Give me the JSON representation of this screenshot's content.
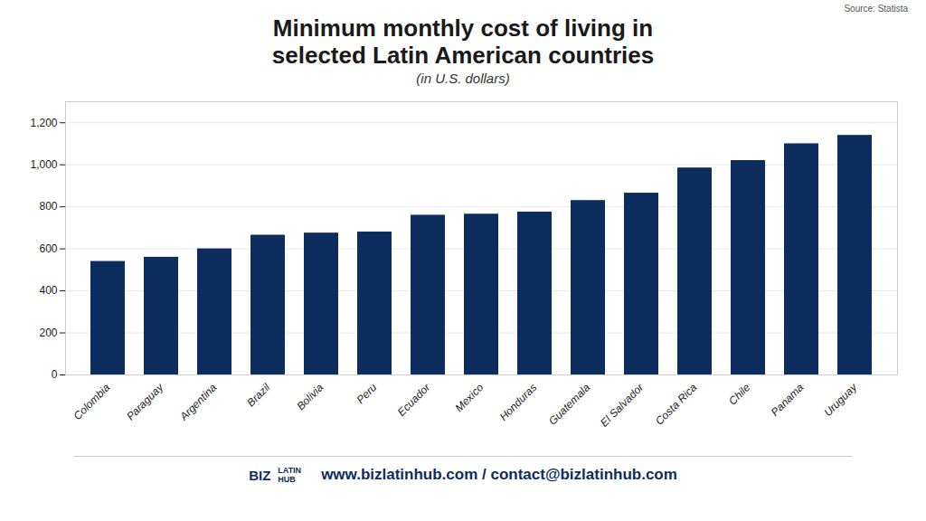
{
  "chart_data": {
    "type": "bar",
    "title": "Minimum monthly cost of living in\nselected Latin American countries",
    "subtitle": "(in U.S. dollars)",
    "source": "Source: Statista",
    "annotations": [
      "BIZ",
      "LATIN\nHUB"
    ],
    "footer": "www.bizlatinhub.com / contact@bizlatinhub.com",
    "categories": [
      "Colombia",
      "Paraguay",
      "Argentina",
      "Brazil",
      "Bolivia",
      "Peru",
      "Ecuador",
      "Mexico",
      "Honduras",
      "Guatemala",
      "El Salvador",
      "Costa Rica",
      "Chile",
      "Panama",
      "Uruguay"
    ],
    "values": [
      540,
      560,
      600,
      665,
      675,
      680,
      760,
      765,
      775,
      830,
      865,
      985,
      1020,
      1100,
      1140
    ],
    "color": "#0d2d5e",
    "ylim": [
      0,
      1300
    ],
    "yticks": [
      0,
      200,
      400,
      600,
      800,
      {
        "value": 1000,
        "label": "1,000"
      },
      {
        "value": 1200,
        "label": "1,200"
      }
    ],
    "grid": true
  }
}
